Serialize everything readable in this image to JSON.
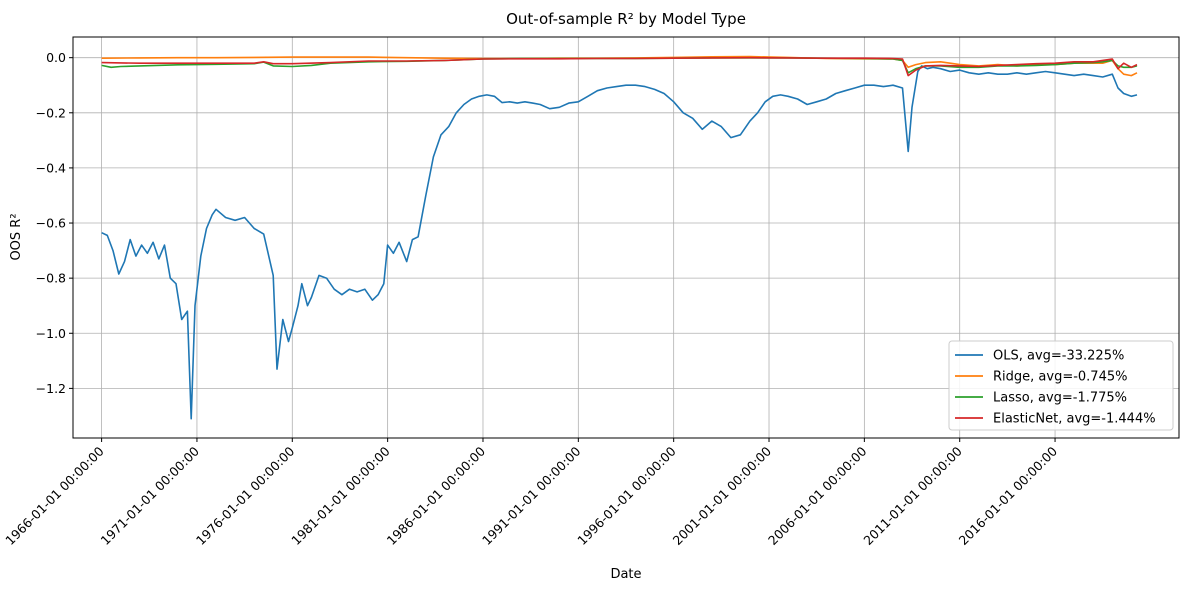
{
  "chart_data": {
    "type": "line",
    "title": "Out-of-sample R² by Model Type",
    "xlabel": "Date",
    "ylabel": "OOS R²",
    "xlim": [
      1964.5,
      2022.5
    ],
    "ylim": [
      -1.38,
      0.075
    ],
    "grid": true,
    "legend_placement": "lower-right",
    "x_ticks": [
      1966,
      1971,
      1976,
      1981,
      1986,
      1991,
      1996,
      2001,
      2006,
      2011,
      2016
    ],
    "x_tick_labels": [
      "1966-01-01 00:00:00",
      "1971-01-01 00:00:00",
      "1976-01-01 00:00:00",
      "1981-01-01 00:00:00",
      "1986-01-01 00:00:00",
      "1991-01-01 00:00:00",
      "1996-01-01 00:00:00",
      "2001-01-01 00:00:00",
      "2006-01-01 00:00:00",
      "2011-01-01 00:00:00",
      "2016-01-01 00:00:00"
    ],
    "y_ticks": [
      0.0,
      -0.2,
      -0.4,
      -0.6,
      -0.8,
      -1.0,
      -1.2
    ],
    "y_tick_labels": [
      "0.0",
      "−0.2",
      "−0.4",
      "−0.6",
      "−0.8",
      "−1.0",
      "−1.2"
    ],
    "series": [
      {
        "name": "OLS, avg=-33.225%",
        "color": "#1f77b4",
        "x": [
          1966.0,
          1966.3,
          1966.6,
          1966.9,
          1967.2,
          1967.5,
          1967.8,
          1968.1,
          1968.4,
          1968.7,
          1969.0,
          1969.3,
          1969.6,
          1969.9,
          1970.2,
          1970.5,
          1970.7,
          1970.9,
          1971.2,
          1971.5,
          1971.8,
          1972.0,
          1972.5,
          1973.0,
          1973.5,
          1974.0,
          1974.5,
          1974.7,
          1975.0,
          1975.2,
          1975.5,
          1975.8,
          1976.0,
          1976.3,
          1976.5,
          1976.8,
          1977.0,
          1977.4,
          1977.8,
          1978.2,
          1978.6,
          1979.0,
          1979.4,
          1979.8,
          1980.2,
          1980.5,
          1980.8,
          1981.0,
          1981.3,
          1981.6,
          1982.0,
          1982.3,
          1982.6,
          1983.0,
          1983.4,
          1983.8,
          1984.2,
          1984.6,
          1985.0,
          1985.4,
          1985.8,
          1986.2,
          1986.6,
          1987.0,
          1987.4,
          1987.8,
          1988.2,
          1988.6,
          1989.0,
          1989.5,
          1990.0,
          1990.5,
          1991.0,
          1991.5,
          1992.0,
          1992.5,
          1993.0,
          1993.5,
          1994.0,
          1994.5,
          1995.0,
          1995.5,
          1996.0,
          1996.5,
          1997.0,
          1997.5,
          1998.0,
          1998.5,
          1999.0,
          1999.5,
          2000.0,
          2000.4,
          2000.8,
          2001.2,
          2001.6,
          2002.0,
          2002.5,
          2003.0,
          2003.5,
          2004.0,
          2004.5,
          2005.0,
          2005.5,
          2006.0,
          2006.5,
          2007.0,
          2007.5,
          2008.0,
          2008.3,
          2008.5,
          2008.8,
          2009.0,
          2009.3,
          2009.6,
          2010.0,
          2010.5,
          2011.0,
          2011.5,
          2012.0,
          2012.5,
          2013.0,
          2013.5,
          2014.0,
          2014.5,
          2015.0,
          2015.5,
          2016.0,
          2016.5,
          2017.0,
          2017.5,
          2018.0,
          2018.5,
          2019.0,
          2019.3,
          2019.6,
          2020.0,
          2020.3
        ],
        "y": [
          -0.635,
          -0.645,
          -0.7,
          -0.785,
          -0.74,
          -0.66,
          -0.72,
          -0.68,
          -0.71,
          -0.67,
          -0.73,
          -0.68,
          -0.8,
          -0.82,
          -0.95,
          -0.92,
          -1.31,
          -0.9,
          -0.72,
          -0.62,
          -0.57,
          -0.55,
          -0.58,
          -0.59,
          -0.58,
          -0.62,
          -0.64,
          -0.7,
          -0.79,
          -1.13,
          -0.95,
          -1.03,
          -0.98,
          -0.9,
          -0.82,
          -0.9,
          -0.87,
          -0.79,
          -0.8,
          -0.84,
          -0.86,
          -0.84,
          -0.85,
          -0.84,
          -0.88,
          -0.86,
          -0.82,
          -0.68,
          -0.71,
          -0.67,
          -0.74,
          -0.66,
          -0.65,
          -0.5,
          -0.36,
          -0.28,
          -0.25,
          -0.2,
          -0.17,
          -0.15,
          -0.14,
          -0.135,
          -0.14,
          -0.163,
          -0.16,
          -0.165,
          -0.16,
          -0.165,
          -0.17,
          -0.185,
          -0.18,
          -0.165,
          -0.16,
          -0.14,
          -0.12,
          -0.11,
          -0.105,
          -0.1,
          -0.1,
          -0.105,
          -0.115,
          -0.13,
          -0.16,
          -0.2,
          -0.22,
          -0.26,
          -0.23,
          -0.25,
          -0.29,
          -0.28,
          -0.23,
          -0.2,
          -0.16,
          -0.14,
          -0.135,
          -0.14,
          -0.15,
          -0.17,
          -0.16,
          -0.15,
          -0.13,
          -0.12,
          -0.11,
          -0.1,
          -0.1,
          -0.105,
          -0.1,
          -0.11,
          -0.34,
          -0.18,
          -0.05,
          -0.03,
          -0.04,
          -0.035,
          -0.04,
          -0.05,
          -0.045,
          -0.055,
          -0.06,
          -0.055,
          -0.06,
          -0.06,
          -0.055,
          -0.06,
          -0.055,
          -0.05,
          -0.055,
          -0.06,
          -0.065,
          -0.06,
          -0.065,
          -0.07,
          -0.06,
          -0.11,
          -0.13,
          -0.14,
          -0.135
        ]
      },
      {
        "name": "Ridge, avg=-0.745%",
        "color": "#ff7f0e",
        "x": [
          1966.0,
          1968.0,
          1970.0,
          1972.0,
          1974.0,
          1976.0,
          1978.0,
          1980.0,
          1982.0,
          1984.0,
          1986.0,
          1988.0,
          1990.0,
          1992.0,
          1994.0,
          1996.0,
          1998.0,
          2000.0,
          2002.0,
          2004.0,
          2006.0,
          2007.5,
          2008.0,
          2008.3,
          2008.7,
          2009.2,
          2010.0,
          2011.0,
          2012.0,
          2013.0,
          2014.0,
          2015.0,
          2016.0,
          2017.0,
          2018.0,
          2018.5,
          2019.0,
          2019.3,
          2019.6,
          2020.0,
          2020.3
        ],
        "y": [
          -0.002,
          -0.001,
          0.0,
          0.0,
          0.001,
          0.002,
          0.002,
          0.002,
          0.0,
          -0.002,
          -0.003,
          -0.003,
          -0.002,
          -0.002,
          -0.001,
          0.001,
          0.003,
          0.004,
          0.001,
          -0.003,
          -0.004,
          -0.005,
          -0.01,
          -0.035,
          -0.025,
          -0.018,
          -0.015,
          -0.025,
          -0.03,
          -0.025,
          -0.03,
          -0.025,
          -0.025,
          -0.02,
          -0.02,
          -0.02,
          -0.01,
          -0.04,
          -0.06,
          -0.065,
          -0.055
        ]
      },
      {
        "name": "Lasso, avg=-1.775%",
        "color": "#2ca02c",
        "x": [
          1966.0,
          1966.5,
          1967.0,
          1968.0,
          1970.0,
          1972.0,
          1974.0,
          1974.5,
          1975.0,
          1976.0,
          1977.0,
          1978.0,
          1980.0,
          1982.0,
          1984.0,
          1986.0,
          1988.0,
          1990.0,
          1992.0,
          1994.0,
          1996.0,
          1998.0,
          2000.0,
          2002.0,
          2004.0,
          2006.0,
          2007.5,
          2008.0,
          2008.3,
          2008.7,
          2009.2,
          2010.0,
          2011.0,
          2012.0,
          2013.0,
          2014.0,
          2015.0,
          2016.0,
          2017.0,
          2018.0,
          2018.5,
          2019.0,
          2019.3,
          2019.6,
          2020.0,
          2020.3
        ],
        "y": [
          -0.028,
          -0.035,
          -0.032,
          -0.03,
          -0.026,
          -0.024,
          -0.022,
          -0.016,
          -0.03,
          -0.032,
          -0.028,
          -0.02,
          -0.015,
          -0.013,
          -0.01,
          -0.005,
          -0.003,
          -0.003,
          -0.003,
          -0.003,
          -0.002,
          -0.001,
          -0.001,
          -0.001,
          -0.002,
          -0.003,
          -0.005,
          -0.01,
          -0.055,
          -0.04,
          -0.03,
          -0.03,
          -0.035,
          -0.035,
          -0.03,
          -0.03,
          -0.028,
          -0.025,
          -0.02,
          -0.018,
          -0.015,
          -0.01,
          -0.03,
          -0.035,
          -0.035,
          -0.03
        ]
      },
      {
        "name": "ElasticNet, avg=-1.444%",
        "color": "#d62728",
        "x": [
          1966.0,
          1968.0,
          1970.0,
          1972.0,
          1974.0,
          1974.5,
          1975.0,
          1976.0,
          1978.0,
          1980.0,
          1982.0,
          1984.0,
          1986.0,
          1988.0,
          1990.0,
          1992.0,
          1994.0,
          1996.0,
          1998.0,
          2000.0,
          2002.0,
          2004.0,
          2006.0,
          2007.5,
          2008.0,
          2008.3,
          2008.7,
          2009.2,
          2010.0,
          2011.0,
          2012.0,
          2013.0,
          2014.0,
          2015.0,
          2016.0,
          2017.0,
          2018.0,
          2018.5,
          2019.0,
          2019.3,
          2019.6,
          2020.0,
          2020.3
        ],
        "y": [
          -0.018,
          -0.02,
          -0.02,
          -0.02,
          -0.02,
          -0.015,
          -0.022,
          -0.022,
          -0.018,
          -0.012,
          -0.012,
          -0.01,
          -0.005,
          -0.004,
          -0.004,
          -0.003,
          -0.003,
          -0.002,
          -0.001,
          0.0,
          -0.001,
          -0.002,
          -0.002,
          -0.003,
          -0.005,
          -0.065,
          -0.045,
          -0.03,
          -0.028,
          -0.03,
          -0.032,
          -0.028,
          -0.025,
          -0.022,
          -0.02,
          -0.015,
          -0.015,
          -0.01,
          -0.005,
          -0.04,
          -0.02,
          -0.035,
          -0.025
        ]
      }
    ]
  }
}
